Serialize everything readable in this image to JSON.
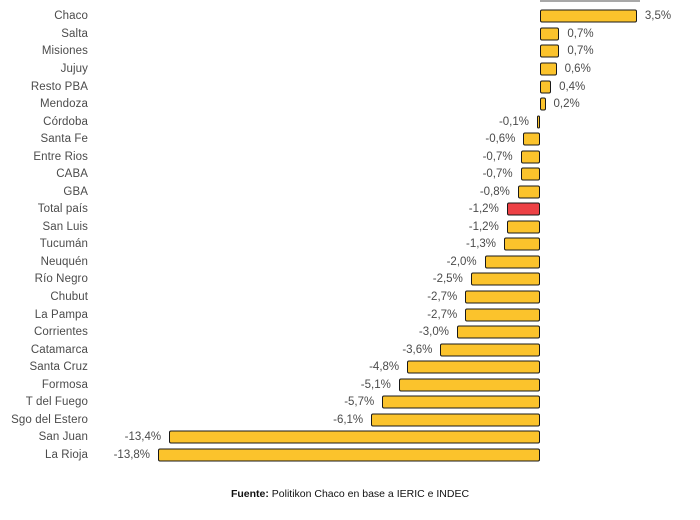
{
  "chart_data": {
    "type": "bar",
    "orientation": "horizontal",
    "title": "",
    "categories": [
      "Chaco",
      "Salta",
      "Misiones",
      "Jujuy",
      "Resto PBA",
      "Mendoza",
      "Córdoba",
      "Santa Fe",
      "Entre Rios",
      "CABA",
      "GBA",
      "Total país",
      "San Luis",
      "Tucumán",
      "Neuquén",
      "Río Negro",
      "Chubut",
      "La Pampa",
      "Corrientes",
      "Catamarca",
      "Santa Cruz",
      "Formosa",
      "T del Fuego",
      "Sgo del Estero",
      "San Juan",
      "La Rioja"
    ],
    "values": [
      3.5,
      0.7,
      0.7,
      0.6,
      0.4,
      0.2,
      -0.1,
      -0.6,
      -0.7,
      -0.7,
      -0.8,
      -1.2,
      -1.2,
      -1.3,
      -2.0,
      -2.5,
      -2.7,
      -2.7,
      -3.0,
      -3.6,
      -4.8,
      -5.1,
      -5.7,
      -6.1,
      -13.4,
      -13.8
    ],
    "value_labels": [
      "3,5%",
      "0,7%",
      "0,7%",
      "0,6%",
      "0,4%",
      "0,2%",
      "-0,1%",
      "-0,6%",
      "-0,7%",
      "-0,7%",
      "-0,8%",
      "-1,2%",
      "-1,2%",
      "-1,3%",
      "-2,0%",
      "-2,5%",
      "-2,7%",
      "-2,7%",
      "-3,0%",
      "-3,6%",
      "-4,8%",
      "-5,1%",
      "-5,7%",
      "-6,1%",
      "-13,4%",
      "-13,8%"
    ],
    "highlighted_category": "Total país",
    "bar_color": "#FBC32C",
    "highlight_color": "#ED4145",
    "bar_border_color": "#181818",
    "label_color": "#4b4b4b",
    "xlim": [
      -14.5,
      4.5
    ],
    "grid": false,
    "legend": "none"
  },
  "footer": {
    "source_bold": "Fuente:",
    "source_rest": " Politikon Chaco en base a IERIC e INDEC"
  }
}
